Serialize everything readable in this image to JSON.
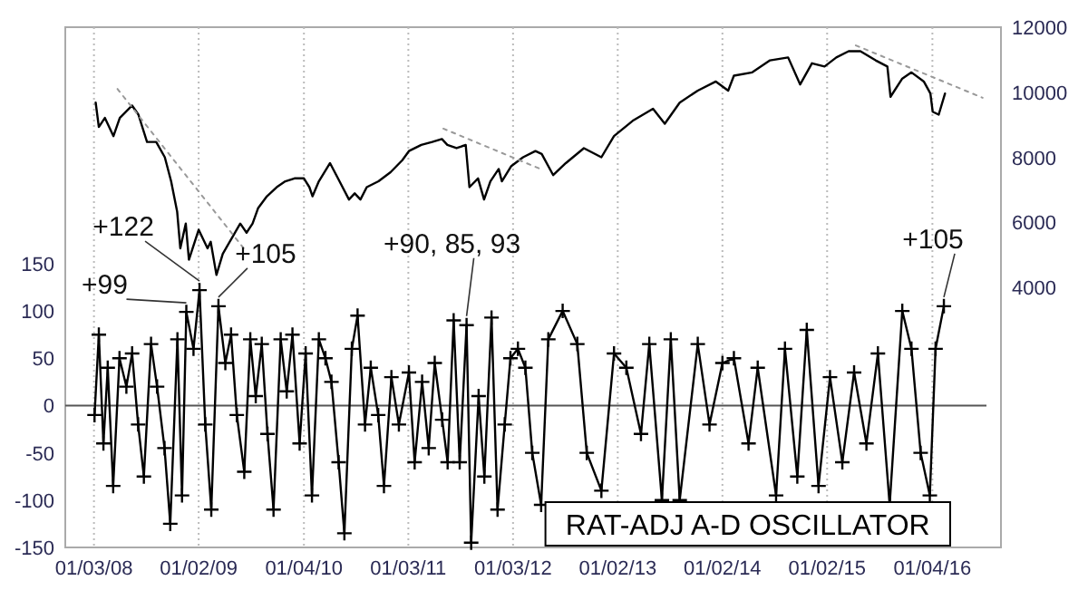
{
  "chart_data": {
    "type": "line",
    "xlim": [
      "2007-09-25",
      "2016-08-30"
    ],
    "xticks": [
      {
        "value": "2008-01-03",
        "label": "01/03/08"
      },
      {
        "value": "2009-01-02",
        "label": "01/02/09"
      },
      {
        "value": "2010-01-04",
        "label": "01/04/10"
      },
      {
        "value": "2011-01-03",
        "label": "01/03/11"
      },
      {
        "value": "2012-01-03",
        "label": "01/03/12"
      },
      {
        "value": "2013-01-02",
        "label": "01/02/13"
      },
      {
        "value": "2014-01-02",
        "label": "01/02/14"
      },
      {
        "value": "2015-01-02",
        "label": "01/02/15"
      },
      {
        "value": "2016-01-04",
        "label": "01/04/16"
      }
    ],
    "ylim": [
      -150,
      400
    ],
    "yticks": [
      -150,
      -100,
      -50,
      0,
      50,
      100,
      150
    ],
    "y2lim": [
      -4000,
      12000
    ],
    "y2ticks": [
      4000,
      6000,
      8000,
      10000,
      12000
    ],
    "grid": "x",
    "legend": "bottom right",
    "ref_lines": [
      {
        "axis": "y",
        "value": 0,
        "color": "#555555"
      }
    ],
    "annotations": [
      {
        "text": "+99",
        "x": "2008-11-20",
        "y": 99
      },
      {
        "text": "+122",
        "x": "2009-01-05",
        "y": 122
      },
      {
        "text": "+105",
        "x": "2009-03-12",
        "y": 105
      },
      {
        "text": "+90, 85, 93",
        "x": "2011-07-25",
        "y": 85
      },
      {
        "text": "+105",
        "x": "2016-02-13",
        "y": 105
      }
    ],
    "series": [
      {
        "type": "line",
        "axis": "y2",
        "color": "#000000",
        "marker": "none",
        "x": [
          "2008-01-09",
          "2008-01-20",
          "2008-02-10",
          "2008-03-11",
          "2008-04-02",
          "2008-05-15",
          "2008-06-06",
          "2008-07-06",
          "2008-08-07",
          "2008-09-06",
          "2008-09-28",
          "2008-10-19",
          "2008-10-30",
          "2008-11-18",
          "2008-11-29",
          "2009-01-02",
          "2009-02-02",
          "2009-02-13",
          "2009-03-05",
          "2009-03-27",
          "2009-04-26",
          "2009-05-27",
          "2009-06-18",
          "2009-07-09",
          "2009-07-28",
          "2009-08-28",
          "2009-10-01",
          "2009-10-31",
          "2009-12-02",
          "2010-01-04",
          "2010-01-23",
          "2010-02-03",
          "2010-02-25",
          "2010-04-05",
          "2010-05-08",
          "2010-06-10",
          "2010-06-30",
          "2010-07-20",
          "2010-08-11",
          "2010-09-21",
          "2010-11-02",
          "2010-12-13",
          "2011-01-05",
          "2011-02-17",
          "2011-03-27",
          "2011-04-30",
          "2011-05-19",
          "2011-06-20",
          "2011-07-22",
          "2011-08-04",
          "2011-09-03",
          "2011-09-24",
          "2011-10-16",
          "2011-11-14",
          "2011-11-25",
          "2011-12-28",
          "2012-02-07",
          "2012-03-21",
          "2012-04-12",
          "2012-05-22",
          "2012-07-05",
          "2012-09-06",
          "2012-11-06",
          "2012-12-20",
          "2013-02-23",
          "2013-05-05",
          "2013-06-15",
          "2013-08-06",
          "2013-10-08",
          "2013-12-10",
          "2014-01-22",
          "2014-02-11",
          "2014-04-16",
          "2014-06-17",
          "2014-08-19",
          "2014-09-30",
          "2014-11-10",
          "2014-12-24",
          "2015-02-03",
          "2015-03-18",
          "2015-04-28",
          "2015-06-20",
          "2015-07-31",
          "2015-08-11",
          "2015-09-21",
          "2015-10-23",
          "2015-12-05",
          "2015-12-28",
          "2016-01-05",
          "2016-01-26",
          "2016-02-17"
        ],
        "values": [
          9680,
          8930,
          9210,
          8650,
          9210,
          9590,
          9310,
          8470,
          8470,
          8000,
          7260,
          6330,
          5200,
          5960,
          4850,
          5770,
          5200,
          5400,
          4380,
          5030,
          5490,
          5960,
          5680,
          5960,
          6430,
          6800,
          7080,
          7260,
          7350,
          7350,
          7080,
          6800,
          7260,
          7820,
          7260,
          6700,
          6890,
          6700,
          7080,
          7260,
          7540,
          7910,
          8190,
          8380,
          8470,
          8560,
          8380,
          8280,
          8380,
          7080,
          7350,
          6700,
          7260,
          7640,
          7260,
          7730,
          8000,
          8190,
          8100,
          7450,
          7820,
          8280,
          8000,
          8650,
          9120,
          9490,
          9030,
          9680,
          10050,
          10330,
          10050,
          10510,
          10610,
          10980,
          11070,
          10240,
          10890,
          10790,
          11070,
          11260,
          11260,
          10980,
          10790,
          9860,
          10420,
          10610,
          10330,
          9960,
          9400,
          9310,
          9960
        ]
      },
      {
        "type": "line",
        "axis": "y2",
        "color": "#999999",
        "line_style": "dotted",
        "x": [
          "2008-03-25",
          "2009-06-08"
        ],
        "values": [
          10100,
          5200
        ]
      },
      {
        "type": "line",
        "axis": "y2",
        "color": "#999999",
        "line_style": "dotted",
        "x": [
          "2011-05-05",
          "2012-04-05"
        ],
        "values": [
          8880,
          7650
        ]
      },
      {
        "type": "line",
        "axis": "y2",
        "color": "#999999",
        "line_style": "dotted",
        "x": [
          "2015-04-12",
          "2016-06-27"
        ],
        "values": [
          11440,
          9830
        ]
      },
      {
        "name": "RAT-ADJ A-D OSCILLATOR",
        "type": "line",
        "color": "#000000",
        "marker": "cross",
        "x": [
          "2008-01-05",
          "2008-01-20",
          "2008-02-05",
          "2008-02-20",
          "2008-03-10",
          "2008-04-01",
          "2008-04-25",
          "2008-05-15",
          "2008-06-05",
          "2008-06-25",
          "2008-07-20",
          "2008-08-10",
          "2008-09-05",
          "2008-09-25",
          "2008-10-20",
          "2008-11-05",
          "2008-11-20",
          "2008-12-15",
          "2009-01-05",
          "2009-01-25",
          "2009-02-15",
          "2009-03-12",
          "2009-04-05",
          "2009-04-25",
          "2009-05-15",
          "2009-06-10",
          "2009-07-01",
          "2009-07-20",
          "2009-08-10",
          "2009-08-30",
          "2009-09-20",
          "2009-10-15",
          "2009-11-05",
          "2009-11-25",
          "2009-12-20",
          "2010-01-10",
          "2010-02-01",
          "2010-02-25",
          "2010-03-20",
          "2010-04-10",
          "2010-05-05",
          "2010-05-25",
          "2010-06-20",
          "2010-07-10",
          "2010-08-05",
          "2010-08-25",
          "2010-09-20",
          "2010-10-10",
          "2010-11-05",
          "2010-12-01",
          "2011-01-05",
          "2011-01-25",
          "2011-02-20",
          "2011-03-15",
          "2011-04-05",
          "2011-05-01",
          "2011-05-20",
          "2011-06-10",
          "2011-07-01",
          "2011-07-25",
          "2011-08-10",
          "2011-09-05",
          "2011-09-25",
          "2011-10-20",
          "2011-11-10",
          "2011-12-05",
          "2011-12-25",
          "2012-01-20",
          "2012-02-15",
          "2012-03-10",
          "2012-04-10",
          "2012-05-05",
          "2012-06-24",
          "2012-08-14",
          "2012-09-16",
          "2012-11-06",
          "2012-12-20",
          "2013-02-01",
          "2013-03-24",
          "2013-04-22",
          "2013-06-05",
          "2013-07-06",
          "2013-08-06",
          "2013-10-08",
          "2013-11-18",
          "2014-01-02",
          "2014-02-11",
          "2014-04-03",
          "2014-05-05",
          "2014-07-08",
          "2014-08-08",
          "2014-09-20",
          "2014-10-23",
          "2014-12-03",
          "2015-01-12",
          "2015-02-24",
          "2015-04-06",
          "2015-05-19",
          "2015-06-28",
          "2015-08-08",
          "2015-09-21",
          "2015-10-23",
          "2015-11-24",
          "2015-12-26",
          "2016-01-15",
          "2016-02-13"
        ],
        "values": [
          -10,
          75,
          -40,
          40,
          -85,
          50,
          20,
          55,
          -20,
          -75,
          65,
          20,
          -45,
          -125,
          70,
          -95,
          99,
          60,
          122,
          -20,
          -110,
          105,
          45,
          75,
          -10,
          -70,
          70,
          10,
          65,
          -30,
          -110,
          70,
          15,
          75,
          -40,
          55,
          -95,
          70,
          50,
          25,
          -60,
          -135,
          60,
          95,
          -20,
          40,
          -10,
          -85,
          30,
          -20,
          35,
          -60,
          25,
          -45,
          45,
          -15,
          -60,
          90,
          -60,
          85,
          -145,
          10,
          -75,
          93,
          -110,
          -20,
          50,
          60,
          40,
          -50,
          -105,
          70,
          100,
          65,
          -50,
          -90,
          55,
          40,
          -30,
          65,
          -100,
          70,
          -100,
          65,
          -20,
          45,
          50,
          -40,
          40,
          -95,
          60,
          -75,
          80,
          -85,
          30,
          -60,
          35,
          -40,
          55,
          -105,
          100,
          60,
          -50,
          -95,
          60,
          105
        ]
      }
    ]
  }
}
